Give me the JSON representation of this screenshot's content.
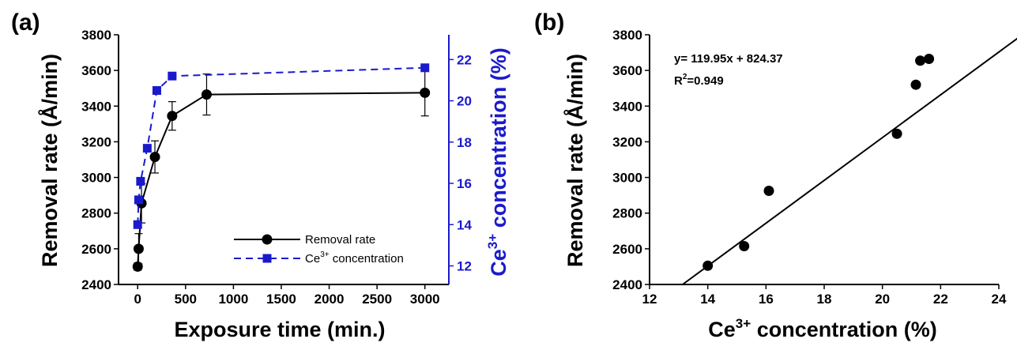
{
  "chart_data": [
    {
      "type": "line",
      "panel_label": "(a)",
      "xlabel": "Exposure time (min.)",
      "ylabel": "Removal rate (Å/min)",
      "y2label_main": "Ce",
      "y2label_sup": "3+",
      "y2label_rest": " concentration (%)",
      "xlim": [
        -200,
        3250
      ],
      "ylim": [
        2400,
        3800
      ],
      "y2lim": [
        11.1,
        23.2
      ],
      "xticks": [
        0,
        500,
        1000,
        1500,
        2000,
        2500,
        3000
      ],
      "yticks": [
        2400,
        2600,
        2800,
        3000,
        3200,
        3400,
        3600,
        3800
      ],
      "y2ticks": [
        12,
        14,
        16,
        18,
        20,
        22
      ],
      "series": [
        {
          "name": "Removal rate",
          "axis": "left",
          "color": "#000000",
          "marker": "circle",
          "style": "solid",
          "x": [
            0,
            10,
            40,
            180,
            360,
            720,
            3000
          ],
          "y": [
            2500,
            2600,
            2855,
            3115,
            3345,
            3465,
            3475
          ],
          "err": [
            20,
            85,
            110,
            90,
            80,
            115,
            130
          ]
        },
        {
          "name_main": "Ce",
          "name_sup": "3+",
          "name_rest": " concentration",
          "axis": "right",
          "color": "#1a1acc",
          "marker": "square",
          "style": "dashed",
          "x": [
            0,
            10,
            30,
            100,
            200,
            360,
            3000
          ],
          "y": [
            14.0,
            15.2,
            16.1,
            17.7,
            20.5,
            21.2,
            21.6
          ]
        }
      ],
      "legend_position": "lower-right"
    },
    {
      "type": "scatter",
      "panel_label": "(b)",
      "xlabel_main": "Ce",
      "xlabel_sup": "3+",
      "xlabel_rest": " concentration (%)",
      "ylabel": "Removal rate (Å/min)",
      "xlim": [
        12,
        24
      ],
      "ylim": [
        2400,
        3800
      ],
      "xticks": [
        12,
        14,
        16,
        18,
        20,
        22,
        24
      ],
      "yticks": [
        2400,
        2600,
        2800,
        3000,
        3200,
        3400,
        3600,
        3800
      ],
      "points": {
        "x": [
          14.0,
          15.25,
          16.1,
          20.5,
          21.15,
          21.3,
          21.6
        ],
        "y": [
          2505,
          2615,
          2925,
          3245,
          3520,
          3655,
          3665
        ]
      },
      "fit": {
        "slope": 119.95,
        "intercept": 824.37
      },
      "equation": "y= 119.95x + 824.37",
      "r2_prefix": "R",
      "r2_sup": "2",
      "r2_value": "=0.949"
    }
  ]
}
